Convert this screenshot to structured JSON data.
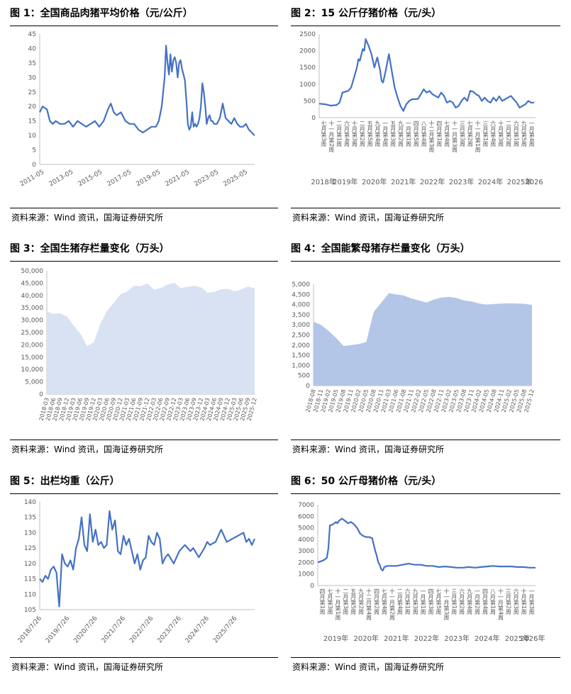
{
  "page": {
    "colors": {
      "line": "#4472C4",
      "area_light": "#D9E2F3",
      "area_medium": "#B4C6E7",
      "axis": "#BFBFBF",
      "text": "#595959"
    }
  },
  "panels": [
    {
      "title": "图 1：全国商品肉猪平均价格（元/公斤）",
      "source": "资料来源：Wind 资讯，国海证券研究所"
    },
    {
      "title": "图 2：15 公斤仔猪价格（元/头）",
      "source": "资料来源：Wind 资讯，国海证券研究所"
    },
    {
      "title": "图 3：全国生猪存栏量变化（万头）",
      "source": "资料来源：Wind 资讯，国海证券研究所"
    },
    {
      "title": "图 4：全国能繁母猪存栏量变化（万头）",
      "source": "资料来源：Wind 资讯，国海证券研究所"
    },
    {
      "title": "图 5：出栏均重（公斤）",
      "source": "资料来源：Wind 资讯，国海证券研究所"
    },
    {
      "title": "图 6：50 公斤母猪价格（元/头）",
      "source": "资料来源：Wind 资讯，国海证券研究所"
    }
  ],
  "chart_data": [
    {
      "type": "line",
      "title": "图 1：全国商品肉猪平均价格（元/公斤）",
      "ylim": [
        0,
        45
      ],
      "yticks": [
        "0",
        "5",
        "10",
        "15",
        "20",
        "25",
        "30",
        "35",
        "40",
        "45"
      ],
      "xlim": [
        2011.0,
        2025.8
      ],
      "xticks": [
        {
          "label": "2011-05",
          "x": 2011.33
        },
        {
          "label": "2013-05",
          "x": 2013.33
        },
        {
          "label": "2015-05",
          "x": 2015.33
        },
        {
          "label": "2017-05",
          "x": 2017.33
        },
        {
          "label": "2019-05",
          "x": 2019.33
        },
        {
          "label": "2021-05",
          "x": 2021.33
        },
        {
          "label": "2023-05",
          "x": 2023.33
        },
        {
          "label": "2025-05",
          "x": 2025.33
        }
      ],
      "x": [
        2011.0,
        2011.2,
        2011.5,
        2011.7,
        2011.9,
        2012.1,
        2012.4,
        2012.7,
        2013.0,
        2013.3,
        2013.6,
        2013.9,
        2014.2,
        2014.5,
        2014.8,
        2015.1,
        2015.4,
        2015.7,
        2015.9,
        2016.1,
        2016.3,
        2016.6,
        2016.9,
        2017.2,
        2017.5,
        2017.8,
        2018.1,
        2018.4,
        2018.7,
        2019.0,
        2019.2,
        2019.4,
        2019.6,
        2019.7,
        2019.8,
        2019.9,
        2020.0,
        2020.1,
        2020.2,
        2020.3,
        2020.4,
        2020.5,
        2020.6,
        2020.7,
        2020.8,
        2020.9,
        2021.0,
        2021.1,
        2021.2,
        2021.3,
        2021.4,
        2021.5,
        2021.6,
        2021.7,
        2021.8,
        2021.9,
        2022.0,
        2022.1,
        2022.2,
        2022.3,
        2022.4,
        2022.5,
        2022.6,
        2022.7,
        2022.8,
        2022.9,
        2023.0,
        2023.2,
        2023.4,
        2023.6,
        2023.8,
        2024.0,
        2024.2,
        2024.4,
        2024.6,
        2024.8,
        2025.0,
        2025.2,
        2025.4,
        2025.6,
        2025.8
      ],
      "series": [
        {
          "values": [
            18,
            20,
            19,
            15,
            14,
            15,
            14,
            14,
            15,
            13,
            15,
            14,
            13,
            14,
            15,
            13,
            15,
            19,
            21,
            18,
            17,
            18,
            15,
            14,
            14,
            12,
            11,
            12,
            13,
            13,
            15,
            20,
            30,
            41,
            35,
            31,
            38,
            32,
            36,
            37,
            35,
            30,
            35,
            36,
            33,
            31,
            29,
            22,
            14,
            12,
            13,
            18,
            13,
            14,
            13,
            14,
            16,
            20,
            28,
            25,
            20,
            14,
            16,
            17,
            15,
            15,
            14,
            14,
            16,
            21,
            16,
            15,
            14,
            16,
            14,
            13,
            13,
            14,
            12,
            11,
            10
          ]
        }
      ]
    },
    {
      "type": "line",
      "title": "图 2：15 公斤仔猪价格（元/头）",
      "ylim": [
        0,
        2500
      ],
      "yticks": [
        "0",
        "500",
        "1000",
        "1500",
        "2000",
        "2500"
      ],
      "xlim": [
        2018.6,
        2026.05
      ],
      "week_labels": [
        "七月第3周",
        "十一月第2周",
        "二月第1周",
        "六月第4周",
        "十月第3周",
        "二月第2周",
        "五月第5周",
        "九月第4周",
        "一月第4周",
        "五月第3周",
        "九月第2周",
        "一月第1周",
        "四月第5周",
        "八月第4周",
        "十二月第3周",
        "四月第1周",
        "七月第4周",
        "十一月第3周",
        "三月第3周",
        "七月第2周",
        "十一月第1周",
        "三月第1周",
        "六月第4周",
        "十月第3周",
        "二月第2周",
        "六月第1周",
        "九月第5周",
        "一月第4周"
      ],
      "year_labels": [
        {
          "label": "2018年",
          "x": 2018.75
        },
        {
          "label": "2019年",
          "x": 2019.5
        },
        {
          "label": "2020年",
          "x": 2020.5
        },
        {
          "label": "2021年",
          "x": 2021.5
        },
        {
          "label": "2022年",
          "x": 2022.5
        },
        {
          "label": "2023年",
          "x": 2023.5
        },
        {
          "label": "2024年",
          "x": 2024.5
        },
        {
          "label": "2025年",
          "x": 2025.5
        },
        {
          "label": "2026",
          "x": 2026.0
        }
      ],
      "x": [
        2018.6,
        2018.8,
        2019.0,
        2019.2,
        2019.3,
        2019.4,
        2019.6,
        2019.7,
        2019.8,
        2019.9,
        2019.95,
        2020.0,
        2020.1,
        2020.15,
        2020.2,
        2020.3,
        2020.4,
        2020.5,
        2020.6,
        2020.7,
        2020.75,
        2020.8,
        2020.9,
        2021.0,
        2021.1,
        2021.2,
        2021.3,
        2021.4,
        2021.5,
        2021.6,
        2021.7,
        2021.8,
        2022.0,
        2022.1,
        2022.2,
        2022.3,
        2022.4,
        2022.5,
        2022.6,
        2022.7,
        2022.8,
        2022.9,
        2023.0,
        2023.1,
        2023.2,
        2023.3,
        2023.4,
        2023.5,
        2023.6,
        2023.7,
        2023.8,
        2023.9,
        2024.0,
        2024.1,
        2024.2,
        2024.3,
        2024.4,
        2024.5,
        2024.6,
        2024.7,
        2024.8,
        2024.9,
        2025.0,
        2025.1,
        2025.2,
        2025.3,
        2025.4,
        2025.5,
        2025.6,
        2025.7,
        2025.8,
        2025.9,
        2026.0
      ],
      "series": [
        {
          "values": [
            420,
            400,
            360,
            380,
            450,
            750,
            800,
            900,
            1200,
            1500,
            1750,
            1700,
            2050,
            2000,
            2350,
            2150,
            1900,
            1500,
            1800,
            1400,
            1100,
            1050,
            1450,
            1900,
            1400,
            900,
            600,
            350,
            200,
            400,
            500,
            550,
            560,
            700,
            850,
            750,
            800,
            700,
            650,
            600,
            750,
            650,
            450,
            500,
            450,
            300,
            350,
            500,
            600,
            500,
            800,
            780,
            700,
            650,
            500,
            600,
            500,
            450,
            600,
            500,
            640,
            500,
            550,
            600,
            650,
            550,
            450,
            300,
            350,
            400,
            500,
            450,
            450
          ]
        }
      ]
    },
    {
      "type": "area",
      "title": "图 3：全国生猪存栏量变化（万头）",
      "ylim": [
        0,
        50000
      ],
      "yticks": [
        "0",
        "5,000",
        "10,000",
        "15,000",
        "20,000",
        "25,000",
        "30,000",
        "35,000",
        "40,000",
        "45,000",
        "50,000"
      ],
      "categories": [
        "2018-03",
        "2018-06",
        "2018-09",
        "2018-12",
        "2019-03",
        "2019-06",
        "2019-09",
        "2019-12",
        "2020-03",
        "2020-06",
        "2020-09",
        "2020-12",
        "2021-03",
        "2021-06",
        "2021-09",
        "2021-12",
        "2022-03",
        "2022-06",
        "2022-09",
        "2022-12",
        "2023-03",
        "2023-06",
        "2023-09",
        "2023-12",
        "2024-03",
        "2024-06",
        "2024-09",
        "2024-12",
        "2025-03",
        "2025-06",
        "2025-09",
        "2025-12"
      ],
      "series": [
        {
          "values": [
            33500,
            32500,
            32800,
            31500,
            27800,
            24500,
            19500,
            21000,
            28500,
            33900,
            37000,
            40600,
            41600,
            43900,
            43800,
            44900,
            42300,
            43000,
            44400,
            45200,
            43000,
            43500,
            43900,
            43300,
            41000,
            41500,
            42500,
            42700,
            41700,
            42400,
            43600,
            42900
          ]
        }
      ]
    },
    {
      "type": "area",
      "title": "图 4：全国能繁母猪存栏量变化（万头）",
      "ylim": [
        0,
        5000
      ],
      "yticks": [
        "0",
        "500",
        "1,000",
        "1,500",
        "2,000",
        "2,500",
        "3,000",
        "3,500",
        "4,000",
        "4,500",
        "5,000"
      ],
      "categories": [
        "2018-08",
        "2018-11",
        "2019-02",
        "2019-05",
        "2019-08",
        "2019-11",
        "2020-02",
        "2020-05",
        "2020-08",
        "2020-11",
        "2021-03",
        "2021-06",
        "2021-08",
        "2021-11",
        "2022-02",
        "2022-05",
        "2022-08",
        "2022-11",
        "2023-02",
        "2023-05",
        "2023-08",
        "2023-11",
        "2024-02",
        "2024-05",
        "2024-08",
        "2024-11",
        "2025-02",
        "2025-05",
        "2025-08",
        "2025-12"
      ],
      "series": [
        {
          "values": [
            3150,
            3000,
            2700,
            2350,
            1950,
            2000,
            2050,
            2150,
            3650,
            4100,
            4560,
            4500,
            4450,
            4300,
            4200,
            4100,
            4250,
            4350,
            4380,
            4320,
            4200,
            4150,
            4050,
            4000,
            4030,
            4050,
            4060,
            4050,
            4040,
            3980
          ]
        }
      ]
    },
    {
      "type": "line",
      "title": "图 5：出栏均重（公斤）",
      "ylim": [
        105,
        140
      ],
      "yticks": [
        "105",
        "110",
        "115",
        "120",
        "125",
        "130",
        "135",
        "140"
      ],
      "xlim": [
        2018.5,
        2026.2
      ],
      "xticks": [
        {
          "label": "2018/7/26",
          "x": 2018.57
        },
        {
          "label": "2019/7/26",
          "x": 2019.57
        },
        {
          "label": "2020/7/26",
          "x": 2020.57
        },
        {
          "label": "2021/7/26",
          "x": 2021.57
        },
        {
          "label": "2022/7/26",
          "x": 2022.57
        },
        {
          "label": "2023/7/26",
          "x": 2023.57
        },
        {
          "label": "2024/7/26",
          "x": 2024.57
        },
        {
          "label": "2025/7/26",
          "x": 2025.57
        }
      ],
      "x": [
        2018.5,
        2018.6,
        2018.7,
        2018.8,
        2018.9,
        2019.0,
        2019.1,
        2019.2,
        2019.3,
        2019.4,
        2019.5,
        2019.6,
        2019.7,
        2019.8,
        2019.9,
        2020.0,
        2020.1,
        2020.2,
        2020.3,
        2020.4,
        2020.5,
        2020.6,
        2020.7,
        2020.8,
        2020.9,
        2021.0,
        2021.1,
        2021.2,
        2021.3,
        2021.4,
        2021.5,
        2021.6,
        2021.7,
        2021.8,
        2021.9,
        2022.0,
        2022.1,
        2022.2,
        2022.3,
        2022.4,
        2022.5,
        2022.6,
        2022.7,
        2022.8,
        2022.9,
        2023.0,
        2023.1,
        2023.3,
        2023.5,
        2023.7,
        2023.9,
        2024.0,
        2024.2,
        2024.4,
        2024.5,
        2024.6,
        2024.8,
        2025.0,
        2025.2,
        2025.4,
        2025.6,
        2025.8,
        2025.9,
        2026.0,
        2026.1,
        2026.2
      ],
      "series": [
        {
          "values": [
            115,
            114,
            116,
            115,
            118,
            119,
            117,
            106,
            123,
            120,
            119,
            121,
            118,
            125,
            128,
            135,
            126,
            124,
            136,
            127,
            131,
            126,
            127,
            125,
            126,
            137,
            131,
            134,
            124,
            123,
            129,
            126,
            128,
            124,
            120,
            123,
            118,
            121,
            122,
            129,
            127,
            126,
            130,
            128,
            120,
            122,
            123,
            120,
            124,
            126,
            124,
            125,
            122,
            125,
            127,
            126,
            127,
            131,
            127,
            128,
            129,
            130,
            127,
            128,
            126,
            128
          ]
        }
      ]
    },
    {
      "type": "line",
      "title": "图 6：50 公斤母猪价格（元/头）",
      "ylim": [
        0,
        7000
      ],
      "yticks": [
        "0",
        "1000",
        "2000",
        "3000",
        "4000",
        "5000",
        "6000",
        "7000"
      ],
      "xlim": [
        2019.0,
        2026.2
      ],
      "week_labels": [
        "四月第1周",
        "七月第3周",
        "十一月第1周",
        "二月第3周",
        "五月第5周",
        "九月第2周",
        "十二月第4周",
        "四月第2周",
        "七月第4周",
        "十一月第2周",
        "二月第4周",
        "六月第1周",
        "九月第3周",
        "一月第1周",
        "四月第3周",
        "七月第5周",
        "十一月第3周",
        "三月第1周",
        "六月第2周",
        "九月第4周",
        "一月第2周",
        "四月第4周",
        "八月第1周",
        "十一月第4周",
        "三月第2周",
        "六月第3周",
        "十月第1周",
        "一月第3周"
      ],
      "year_labels": [
        {
          "label": "2019年",
          "x": 2019.6
        },
        {
          "label": "2020年",
          "x": 2020.6
        },
        {
          "label": "2021年",
          "x": 2021.6
        },
        {
          "label": "2022年",
          "x": 2022.6
        },
        {
          "label": "2023年",
          "x": 2023.6
        },
        {
          "label": "2024年",
          "x": 2024.6
        },
        {
          "label": "2025年",
          "x": 2025.6
        },
        {
          "label": "2026年",
          "x": 2026.1
        }
      ],
      "x": [
        2019.0,
        2019.1,
        2019.2,
        2019.3,
        2019.35,
        2019.4,
        2019.5,
        2019.6,
        2019.65,
        2019.7,
        2019.8,
        2019.9,
        2020.0,
        2020.1,
        2020.2,
        2020.3,
        2020.4,
        2020.5,
        2020.6,
        2020.7,
        2020.8,
        2020.9,
        2020.95,
        2021.0,
        2021.05,
        2021.1,
        2021.15,
        2021.2,
        2021.3,
        2021.4,
        2021.5,
        2021.6,
        2021.8,
        2022.0,
        2022.2,
        2022.4,
        2022.6,
        2022.8,
        2023.0,
        2023.2,
        2023.4,
        2023.6,
        2023.8,
        2024.0,
        2024.2,
        2024.4,
        2024.6,
        2024.8,
        2025.0,
        2025.2,
        2025.4,
        2025.6,
        2025.8,
        2026.0,
        2026.2
      ],
      "series": [
        {
          "values": [
            2000,
            2100,
            2200,
            2400,
            3200,
            5200,
            5300,
            5500,
            5400,
            5600,
            5800,
            5600,
            5400,
            5500,
            5300,
            5000,
            4500,
            4300,
            4200,
            4200,
            4100,
            3000,
            2600,
            2000,
            1800,
            1400,
            1300,
            1600,
            1700,
            1700,
            1700,
            1700,
            1800,
            1900,
            1800,
            1800,
            1700,
            1700,
            1600,
            1650,
            1600,
            1550,
            1550,
            1600,
            1550,
            1600,
            1650,
            1700,
            1650,
            1650,
            1650,
            1600,
            1600,
            1550,
            1550
          ]
        }
      ]
    }
  ]
}
